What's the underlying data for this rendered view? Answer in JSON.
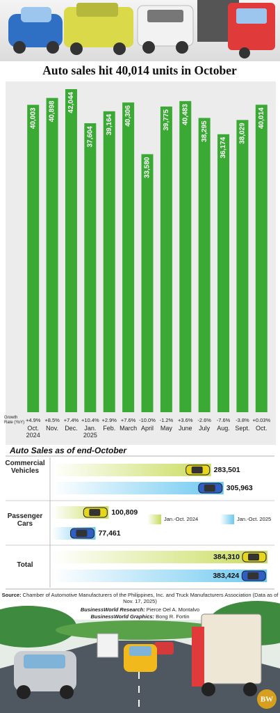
{
  "chart_data": [
    {
      "type": "bar",
      "title": "Auto sales hit 40,014 units in October",
      "categories": [
        "Oct. 2024",
        "Nov.",
        "Dec.",
        "Jan. 2025",
        "Feb.",
        "March",
        "April",
        "May",
        "June",
        "July",
        "Aug.",
        "Sept.",
        "Oct."
      ],
      "values": [
        40003,
        40898,
        42044,
        37604,
        39164,
        40306,
        33580,
        39775,
        40483,
        38295,
        36174,
        38029,
        40014
      ],
      "value_labels": [
        "40,003",
        "40,898",
        "42,044",
        "37,604",
        "39,164",
        "40,306",
        "33,580",
        "39,775",
        "40,483",
        "38,295",
        "36,174",
        "38,029",
        "40,014"
      ],
      "color": "#3aaa35",
      "growth_rate_label": "Growth Rate (YoY)",
      "growth_rates": [
        "+4.9%",
        "+8.5%",
        "+7.4%",
        "+10.4%",
        "+2.9%",
        "+7.6%",
        "-10.0%",
        "-1.2%",
        "+3.6%",
        "-2.6%",
        "-7.6%",
        "-3.8%",
        "+0.03%"
      ]
    },
    {
      "type": "hbar",
      "title": "Auto Sales as of end-October",
      "categories": [
        "Commercial Vehicles",
        "Passenger Cars",
        "Total"
      ],
      "series": [
        {
          "name": "Jan.-Oct. 2024",
          "color": "#c9dc5c",
          "values": [
            283501,
            100809,
            384310
          ],
          "value_labels": [
            "283,501",
            "100,809",
            "384,310"
          ]
        },
        {
          "name": "Jan.-Oct. 2025",
          "color": "#6cc8f0",
          "values": [
            305963,
            77461,
            383424
          ],
          "value_labels": [
            "305,963",
            "77,461",
            "383,424"
          ]
        }
      ]
    }
  ],
  "source_label": "Source:",
  "source": "Chamber of Automotive Manufacturers of the Philippines, Inc. and Truck Manufacturers Association (Data as of Nov. 17, 2025)",
  "research_label": "BusinessWorld Research:",
  "research": "Pierce Oel A. Montalvo",
  "graphics_label": "BusinessWorld Graphics:",
  "graphics": "Bong R. Fortin",
  "logo": "BW"
}
